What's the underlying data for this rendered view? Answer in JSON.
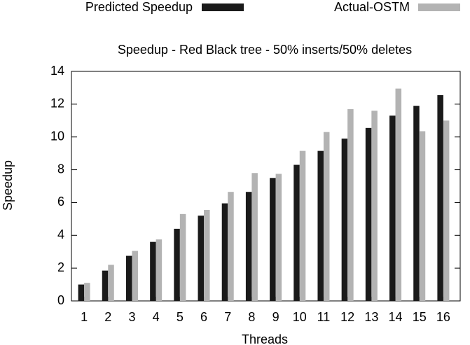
{
  "chart_data": {
    "type": "bar",
    "title": "Speedup - Red Black tree - 50% inserts/50% deletes",
    "x_label": "Threads",
    "y_label": "Speedup",
    "categories": [
      "1",
      "2",
      "3",
      "4",
      "5",
      "6",
      "7",
      "8",
      "9",
      "10",
      "11",
      "12",
      "13",
      "14",
      "15",
      "16"
    ],
    "series": [
      {
        "name": "Predicted Speedup",
        "color": "#1a1a1a",
        "values": [
          1.0,
          1.85,
          2.75,
          3.6,
          4.4,
          5.2,
          5.95,
          6.65,
          7.5,
          8.3,
          9.15,
          9.9,
          10.55,
          11.3,
          11.9,
          12.55
        ]
      },
      {
        "name": "Actual-OSTM",
        "color": "#b3b3b3",
        "values": [
          1.1,
          2.2,
          3.05,
          3.75,
          5.3,
          5.55,
          6.65,
          7.8,
          7.75,
          9.15,
          10.3,
          11.7,
          11.6,
          12.95,
          10.35,
          11.0
        ]
      }
    ],
    "ylim": [
      0,
      14
    ],
    "yticks": [
      0,
      2,
      4,
      6,
      8,
      10,
      12,
      14
    ],
    "legend": "top"
  }
}
